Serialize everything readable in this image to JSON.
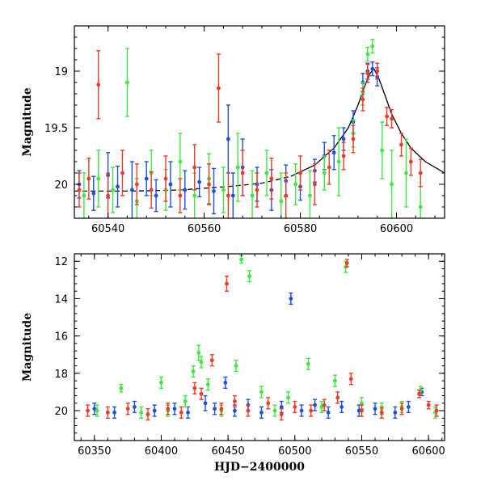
{
  "colors": {
    "blue": "#1f4fe0",
    "green": "#3ee83e",
    "red": "#f03a28",
    "model": "#000000"
  },
  "chart_data": [
    {
      "type": "scatter",
      "panel": "top",
      "xlabel": "",
      "ylabel": "Magnitude",
      "xlim": [
        60533,
        60610
      ],
      "ylim": [
        20.3,
        18.6
      ],
      "y_inverted": true,
      "xticks": [
        60540,
        60560,
        60580,
        60600
      ],
      "yticks": [
        19,
        19.5,
        20
      ],
      "ytick_labels": [
        "19",
        "19.5",
        "20"
      ],
      "model_curve": {
        "style": "dashed-then-solid",
        "points": [
          [
            60533,
            20.06
          ],
          [
            60545,
            20.06
          ],
          [
            60555,
            20.05
          ],
          [
            60565,
            20.02
          ],
          [
            60572,
            19.99
          ],
          [
            60578,
            19.93
          ],
          [
            60583,
            19.83
          ],
          [
            60587,
            19.68
          ],
          [
            60590,
            19.5
          ],
          [
            60592,
            19.3
          ],
          [
            60593.5,
            19.12
          ],
          [
            60594.5,
            19.02
          ],
          [
            60595.3,
            18.98
          ],
          [
            60596.2,
            19.05
          ],
          [
            60597.5,
            19.2
          ],
          [
            60599,
            19.38
          ],
          [
            60601,
            19.55
          ],
          [
            60603,
            19.68
          ],
          [
            60606,
            19.8
          ],
          [
            60610,
            19.9
          ]
        ]
      },
      "series": [
        {
          "name": "",
          "color_key": "blue",
          "points": [
            [
              60534,
              20.0,
              0.12
            ],
            [
              60537,
              20.08,
              0.15
            ],
            [
              60540,
              19.92,
              0.2
            ],
            [
              60542,
              20.02,
              0.18
            ],
            [
              60545,
              20.05,
              0.25
            ],
            [
              60548,
              19.95,
              0.15
            ],
            [
              60550,
              20.1,
              0.14
            ],
            [
              60553,
              20.0,
              0.2
            ],
            [
              60556,
              20.05,
              0.17
            ],
            [
              60559,
              19.98,
              0.13
            ],
            [
              60562,
              20.06,
              0.2
            ],
            [
              60565,
              19.6,
              0.3
            ],
            [
              60566,
              20.1,
              0.2
            ],
            [
              60568,
              19.85,
              0.25
            ],
            [
              60571,
              20.0,
              0.15
            ],
            [
              60574,
              20.05,
              0.18
            ],
            [
              60577,
              19.97,
              0.14
            ],
            [
              60580,
              20.02,
              0.12
            ],
            [
              60583,
              19.88,
              0.1
            ],
            [
              60585,
              19.75,
              0.12
            ],
            [
              60587,
              19.72,
              0.15
            ],
            [
              60589,
              19.6,
              0.1
            ],
            [
              60591,
              19.45,
              0.1
            ],
            [
              60593,
              19.1,
              0.08
            ],
            [
              60594,
              19.0,
              0.07
            ],
            [
              60595,
              18.98,
              0.06
            ],
            [
              60596,
              19.05,
              0.08
            ]
          ]
        },
        {
          "name": "",
          "color_key": "green",
          "points": [
            [
              60535,
              20.1,
              0.2
            ],
            [
              60538,
              19.95,
              0.25
            ],
            [
              60541,
              20.05,
              0.2
            ],
            [
              60544,
              19.1,
              0.3
            ],
            [
              60546,
              20.15,
              0.2
            ],
            [
              60549,
              19.9,
              0.2
            ],
            [
              60552,
              20.05,
              0.18
            ],
            [
              60555,
              19.8,
              0.25
            ],
            [
              60558,
              20.1,
              0.2
            ],
            [
              60561,
              19.95,
              0.22
            ],
            [
              60564,
              20.05,
              0.2
            ],
            [
              60567,
              19.85,
              0.3
            ],
            [
              60570,
              20.1,
              0.22
            ],
            [
              60573,
              19.9,
              0.2
            ],
            [
              60576,
              20.15,
              0.25
            ],
            [
              60579,
              20.0,
              0.18
            ],
            [
              60582,
              20.1,
              0.22
            ],
            [
              60585,
              19.9,
              0.15
            ],
            [
              60588,
              19.8,
              0.3
            ],
            [
              60591,
              19.55,
              0.12
            ],
            [
              60593,
              19.2,
              0.1
            ],
            [
              60594,
              18.85,
              0.06
            ],
            [
              60595,
              18.78,
              0.06
            ],
            [
              60597,
              19.7,
              0.25
            ],
            [
              60599,
              20.0,
              0.3
            ],
            [
              60602,
              19.9,
              0.3
            ],
            [
              60605,
              20.2,
              0.3
            ]
          ]
        },
        {
          "name": "",
          "color_key": "red",
          "points": [
            [
              60534,
              20.05,
              0.15
            ],
            [
              60536,
              19.95,
              0.18
            ],
            [
              60538,
              19.12,
              0.3
            ],
            [
              60540,
              20.1,
              0.2
            ],
            [
              60543,
              19.9,
              0.2
            ],
            [
              60546,
              20.0,
              0.18
            ],
            [
              60549,
              20.05,
              0.16
            ],
            [
              60552,
              19.95,
              0.2
            ],
            [
              60555,
              20.1,
              0.15
            ],
            [
              60558,
              19.85,
              0.2
            ],
            [
              60561,
              20.0,
              0.18
            ],
            [
              60563,
              19.15,
              0.3
            ],
            [
              60565,
              20.1,
              0.2
            ],
            [
              60568,
              19.9,
              0.2
            ],
            [
              60571,
              20.05,
              0.15
            ],
            [
              60574,
              19.95,
              0.18
            ],
            [
              60577,
              20.1,
              0.2
            ],
            [
              60580,
              19.9,
              0.15
            ],
            [
              60583,
              20.0,
              0.18
            ],
            [
              60586,
              19.85,
              0.15
            ],
            [
              60589,
              19.75,
              0.12
            ],
            [
              60591,
              19.6,
              0.12
            ],
            [
              60593,
              19.25,
              0.1
            ],
            [
              60594,
              19.02,
              0.08
            ],
            [
              60596,
              19.0,
              0.07
            ],
            [
              60598,
              19.4,
              0.08
            ],
            [
              60599,
              19.42,
              0.08
            ],
            [
              60601,
              19.65,
              0.1
            ],
            [
              60603,
              19.8,
              0.12
            ],
            [
              60605,
              19.9,
              0.12
            ]
          ]
        }
      ]
    },
    {
      "type": "scatter",
      "panel": "bottom",
      "xlabel": "HJD−2400000",
      "ylabel": "Magnitude",
      "xlim": [
        60335,
        60612
      ],
      "ylim": [
        21.6,
        11.6
      ],
      "y_inverted": true,
      "xticks": [
        60350,
        60400,
        60450,
        60500,
        60550,
        60600
      ],
      "yticks": [
        12,
        14,
        16,
        18,
        20
      ],
      "ytick_labels": [
        "12",
        "14",
        "16",
        "18",
        "20"
      ],
      "series": [
        {
          "name": "",
          "color_key": "blue",
          "points": [
            [
              60350,
              19.9,
              0.3
            ],
            [
              60365,
              20.1,
              0.3
            ],
            [
              60380,
              19.8,
              0.3
            ],
            [
              60395,
              20.0,
              0.3
            ],
            [
              60410,
              19.9,
              0.3
            ],
            [
              60420,
              20.1,
              0.3
            ],
            [
              60433,
              19.6,
              0.4
            ],
            [
              60440,
              19.9,
              0.3
            ],
            [
              60448,
              18.5,
              0.3
            ],
            [
              60455,
              20.0,
              0.3
            ],
            [
              60465,
              19.7,
              0.3
            ],
            [
              60475,
              20.1,
              0.3
            ],
            [
              60490,
              19.8,
              0.3
            ],
            [
              60497,
              14.0,
              0.3
            ],
            [
              60505,
              20.0,
              0.3
            ],
            [
              60515,
              19.7,
              0.3
            ],
            [
              60525,
              20.1,
              0.3
            ],
            [
              60535,
              19.8,
              0.3
            ],
            [
              60548,
              20.0,
              0.3
            ],
            [
              60560,
              19.9,
              0.3
            ],
            [
              60575,
              20.1,
              0.3
            ],
            [
              60585,
              19.8,
              0.3
            ],
            [
              60595,
              19.0,
              0.2
            ]
          ]
        },
        {
          "name": "",
          "color_key": "green",
          "points": [
            [
              60352,
              20.0,
              0.3
            ],
            [
              60370,
              18.8,
              0.2
            ],
            [
              60385,
              20.1,
              0.3
            ],
            [
              60400,
              18.5,
              0.3
            ],
            [
              60405,
              20.0,
              0.3
            ],
            [
              60418,
              19.5,
              0.3
            ],
            [
              60424,
              17.9,
              0.3
            ],
            [
              60428,
              16.9,
              0.4
            ],
            [
              60430,
              17.4,
              0.3
            ],
            [
              60435,
              18.6,
              0.3
            ],
            [
              60445,
              20.0,
              0.3
            ],
            [
              60456,
              17.6,
              0.3
            ],
            [
              60460,
              11.9,
              0.2
            ],
            [
              60466,
              12.8,
              0.3
            ],
            [
              60475,
              19.0,
              0.3
            ],
            [
              60485,
              20.0,
              0.3
            ],
            [
              60495,
              19.3,
              0.3
            ],
            [
              60510,
              17.5,
              0.3
            ],
            [
              60520,
              19.8,
              0.3
            ],
            [
              60530,
              18.4,
              0.3
            ],
            [
              60538,
              12.3,
              0.3
            ],
            [
              60550,
              19.6,
              0.3
            ],
            [
              60565,
              19.9,
              0.3
            ],
            [
              60580,
              19.8,
              0.3
            ],
            [
              60594,
              18.9,
              0.2
            ],
            [
              60605,
              20.1,
              0.3
            ]
          ]
        },
        {
          "name": "",
          "color_key": "red",
          "points": [
            [
              60345,
              20.0,
              0.3
            ],
            [
              60360,
              20.1,
              0.3
            ],
            [
              60375,
              19.9,
              0.3
            ],
            [
              60390,
              20.2,
              0.3
            ],
            [
              60405,
              19.9,
              0.3
            ],
            [
              60415,
              20.1,
              0.3
            ],
            [
              60425,
              18.8,
              0.3
            ],
            [
              60430,
              19.1,
              0.3
            ],
            [
              60438,
              17.3,
              0.3
            ],
            [
              60445,
              19.9,
              0.3
            ],
            [
              60449,
              13.2,
              0.4
            ],
            [
              60455,
              19.5,
              0.3
            ],
            [
              60465,
              20.0,
              0.3
            ],
            [
              60480,
              19.6,
              0.3
            ],
            [
              60490,
              20.2,
              0.3
            ],
            [
              60500,
              19.8,
              0.3
            ],
            [
              60512,
              20.0,
              0.3
            ],
            [
              60522,
              19.7,
              0.3
            ],
            [
              60532,
              19.3,
              0.3
            ],
            [
              60539,
              12.1,
              0.2
            ],
            [
              60542,
              18.3,
              0.3
            ],
            [
              60550,
              20.0,
              0.3
            ],
            [
              60565,
              20.1,
              0.3
            ],
            [
              60580,
              19.9,
              0.3
            ],
            [
              60593,
              19.1,
              0.2
            ],
            [
              60600,
              19.7,
              0.2
            ],
            [
              60606,
              20.0,
              0.3
            ]
          ]
        }
      ]
    }
  ]
}
